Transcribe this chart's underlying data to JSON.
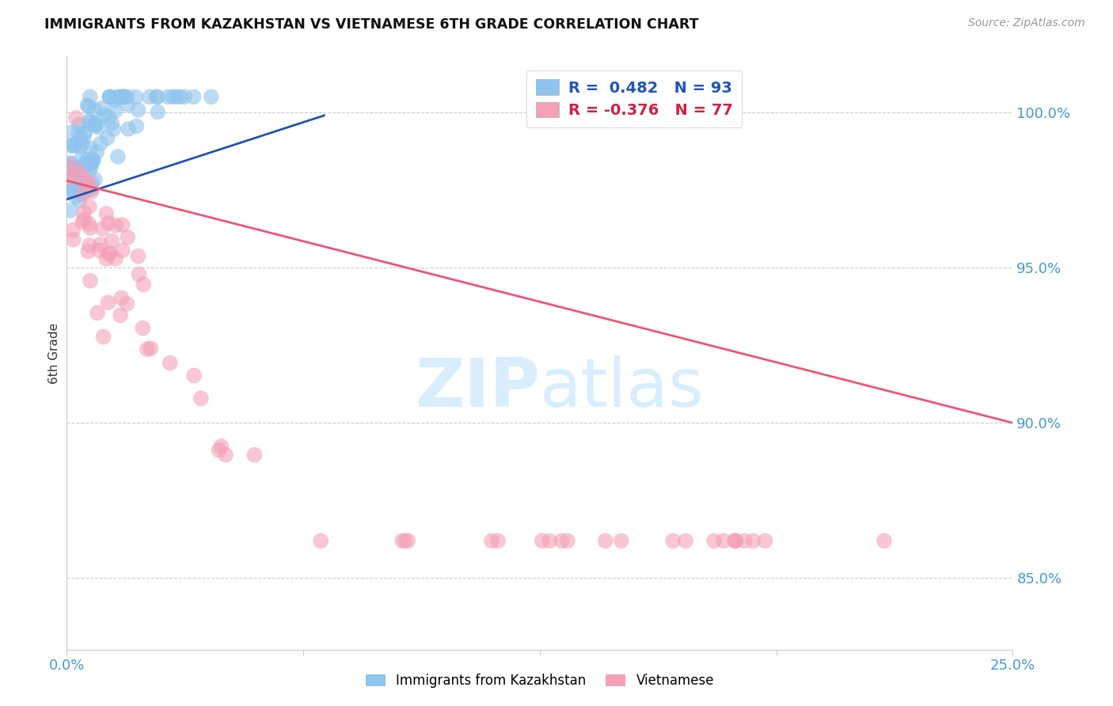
{
  "title": "IMMIGRANTS FROM KAZAKHSTAN VS VIETNAMESE 6TH GRADE CORRELATION CHART",
  "source": "Source: ZipAtlas.com",
  "ylabel": "6th Grade",
  "ytick_labels": [
    "100.0%",
    "95.0%",
    "90.0%",
    "85.0%"
  ],
  "ytick_values": [
    1.0,
    0.95,
    0.9,
    0.85
  ],
  "xtick_labels": [
    "0.0%",
    "25.0%"
  ],
  "xtick_values": [
    0.0,
    0.25
  ],
  "xmin": 0.0,
  "xmax": 0.25,
  "ymin": 0.827,
  "ymax": 1.018,
  "legend_blue_R": "0.482",
  "legend_blue_N": "93",
  "legend_pink_R": "-0.376",
  "legend_pink_N": "77",
  "legend_label_blue": "Immigrants from Kazakhstan",
  "legend_label_pink": "Vietnamese",
  "color_blue": "#8EC4EE",
  "color_pink": "#F4A0B8",
  "color_blue_line": "#2255AA",
  "color_pink_line": "#EE5577",
  "color_grid": "#CCCCCC",
  "color_title": "#111111",
  "color_source": "#999999",
  "color_axis_right": "#4499DD",
  "watermark_color": "#D8EEFF",
  "background_color": "#FFFFFF",
  "blue_line_x": [
    0.0,
    0.068
  ],
  "blue_line_y": [
    0.972,
    0.999
  ],
  "pink_line_x": [
    0.0,
    0.25
  ],
  "pink_line_y": [
    0.978,
    0.9
  ]
}
